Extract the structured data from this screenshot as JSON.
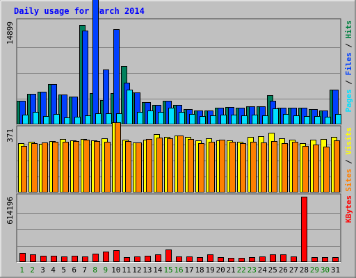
{
  "chart_data": {
    "type": "bar",
    "title": "Daily usage for March 2014",
    "categories": [
      "1",
      "2",
      "3",
      "4",
      "5",
      "6",
      "7",
      "8",
      "9",
      "10",
      "11",
      "12",
      "13",
      "14",
      "15",
      "16",
      "17",
      "18",
      "19",
      "20",
      "21",
      "22",
      "23",
      "24",
      "25",
      "26",
      "27",
      "28",
      "29",
      "30",
      "31"
    ],
    "weekend_days": [
      "1",
      "2",
      "8",
      "9",
      "15",
      "16",
      "22",
      "23",
      "29",
      "30"
    ],
    "panels": [
      {
        "name": "hits-files-pages",
        "ymax": 14899,
        "ymax_label": "14899",
        "grid": true,
        "right_label": [
          "Pages",
          " / ",
          "Files",
          " / ",
          "Hits"
        ],
        "right_label_colors": [
          "#00e0ff",
          "#000000",
          "#0040ff",
          "#000000",
          "#008040"
        ],
        "series": [
          {
            "name": "Hits",
            "color": "#00805c",
            "values": [
              3400,
              4400,
              4700,
              5800,
              4300,
              4000,
              14400,
              4500,
              3500,
              4500,
              8500,
              4600,
              3200,
              2800,
              3400,
              2800,
              2200,
              2000,
              2000,
              2400,
              2500,
              2400,
              2600,
              2600,
              4200,
              2400,
              2400,
              2400,
              2200,
              2000,
              5000
            ]
          },
          {
            "name": "Files",
            "color": "#0040ff",
            "values": [
              3400,
              4400,
              4700,
              5800,
              4300,
              4000,
              13600,
              20000,
              8000,
              13800,
              6000,
              4600,
              3200,
              2800,
              3400,
              2800,
              2200,
              2000,
              2000,
              2400,
              2500,
              2400,
              2600,
              2600,
              3400,
              2400,
              2400,
              2400,
              2200,
              2000,
              5000
            ]
          },
          {
            "name": "Pages",
            "color": "#00e0ff",
            "values": [
              1400,
              1800,
              1200,
              1500,
              1000,
              1100,
              1300,
              1600,
              1600,
              1600,
              5000,
              1800,
              2000,
              1800,
              2400,
              1800,
              1500,
              1200,
              1300,
              1400,
              1400,
              1300,
              1400,
              1300,
              2300,
              1500,
              1300,
              1200,
              1200,
              1100,
              1500
            ]
          }
        ]
      },
      {
        "name": "visits-sites",
        "ymax": 371,
        "ymax_label": "371",
        "grid": true,
        "right_label": [
          "Sites",
          " / ",
          "Visits"
        ],
        "right_label_colors": [
          "#ff8000",
          "#000000",
          "#ffff00"
        ],
        "series": [
          {
            "name": "Visits",
            "color": "#ffff00",
            "values": [
              288,
              296,
              282,
              300,
              312,
              302,
              310,
              302,
              314,
              406,
              308,
              292,
              308,
              340,
              322,
              330,
              322,
              304,
              313,
              302,
              301,
              296,
              324,
              326,
              348,
              315,
              306,
              288,
              306,
              310,
              322
            ]
          },
          {
            "name": "Sites",
            "color": "#ff8000",
            "values": [
              272,
              286,
              290,
              296,
              296,
              298,
              308,
              298,
              296,
              406,
              297,
              292,
              310,
              318,
              314,
              330,
              310,
              288,
              294,
              306,
              296,
              286,
              294,
              292,
              300,
              287,
              294,
              272,
              278,
              266,
              304
            ]
          }
        ]
      },
      {
        "name": "kbytes",
        "ymax": 614196,
        "ymax_label": "614196",
        "grid": true,
        "right_label": [
          "KBytes"
        ],
        "right_label_colors": [
          "#ff0000"
        ],
        "series": [
          {
            "name": "KBytes",
            "color": "#ff0000",
            "values": [
              86000,
              72000,
              62000,
              62000,
              50000,
              62000,
              52000,
              78000,
              100000,
              110000,
              46000,
              52000,
              62000,
              70000,
              115000,
              54000,
              50000,
              48000,
              72000,
              46000,
              36000,
              40000,
              44000,
              50000,
              70000,
              70000,
              52000,
              614196,
              44000,
              46000,
              48000
            ]
          }
        ]
      }
    ]
  }
}
